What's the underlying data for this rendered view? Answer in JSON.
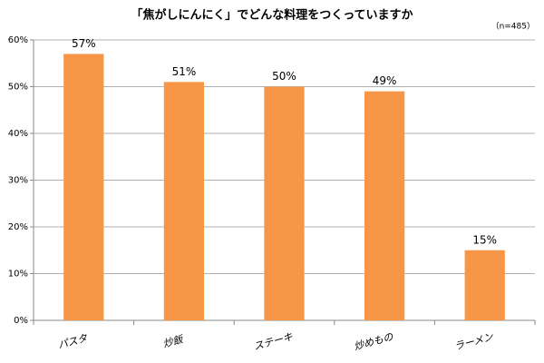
{
  "chart_data": {
    "type": "bar",
    "title": "「焦がしにんにく」でどんな料理をつくっていますか",
    "note": "（n=485）",
    "categories": [
      "パスタ",
      "炒飯",
      "ステーキ",
      "炒めもの",
      "ラーメン"
    ],
    "values": [
      57,
      51,
      50,
      49,
      15
    ],
    "value_labels": [
      "57%",
      "51%",
      "50%",
      "49%",
      "15%"
    ],
    "color": "#f79646",
    "ylim": [
      0,
      60
    ],
    "yticks": [
      {
        "value": 0,
        "label": "0%"
      },
      {
        "value": 10,
        "label": "10%"
      },
      {
        "value": 20,
        "label": "20%"
      },
      {
        "value": 30,
        "label": "30%"
      },
      {
        "value": 40,
        "label": "40%"
      },
      {
        "value": 50,
        "label": "50%"
      },
      {
        "value": 60,
        "label": "60%"
      }
    ],
    "grid": true
  }
}
